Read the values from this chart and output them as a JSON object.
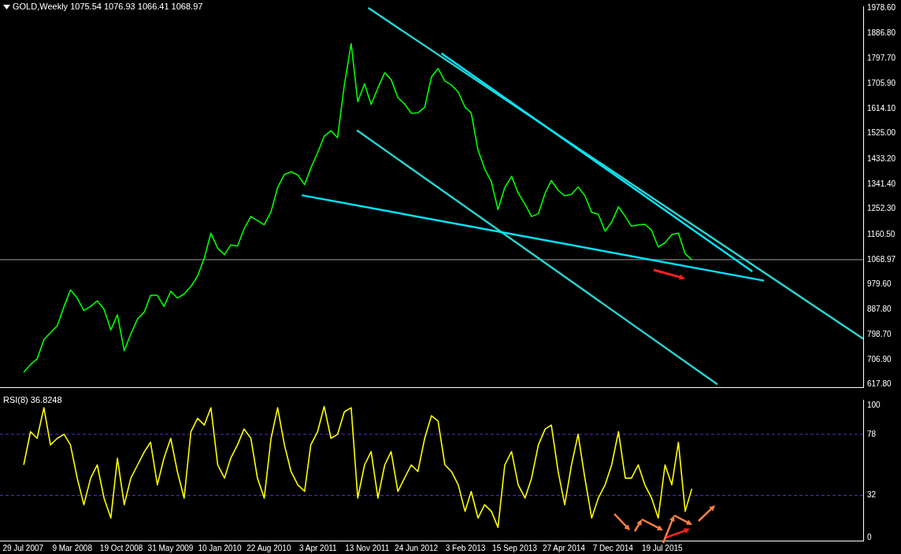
{
  "chart_data": [
    {
      "type": "line",
      "title": "GOLD,Weekly 1075.54 1076.93 1066.41 1068.97",
      "x": [
        "2007-08",
        "2007-09",
        "2007-10",
        "2007-11",
        "2007-12",
        "2008-01",
        "2008-02",
        "2008-03",
        "2008-04",
        "2008-05",
        "2008-06",
        "2008-07",
        "2008-08",
        "2008-09",
        "2008-10",
        "2008-11",
        "2008-12",
        "2009-01",
        "2009-02",
        "2009-03",
        "2009-04",
        "2009-05",
        "2009-06",
        "2009-07",
        "2009-08",
        "2009-09",
        "2009-10",
        "2009-11",
        "2009-12",
        "2010-01",
        "2010-02",
        "2010-03",
        "2010-04",
        "2010-05",
        "2010-06",
        "2010-07",
        "2010-08",
        "2010-09",
        "2010-10",
        "2010-11",
        "2010-12",
        "2011-01",
        "2011-02",
        "2011-03",
        "2011-04",
        "2011-05",
        "2011-06",
        "2011-07",
        "2011-08",
        "2011-09",
        "2011-10",
        "2011-11",
        "2011-12",
        "2012-01",
        "2012-02",
        "2012-03",
        "2012-04",
        "2012-05",
        "2012-06",
        "2012-07",
        "2012-08",
        "2012-09",
        "2012-10",
        "2012-11",
        "2012-12",
        "2013-01",
        "2013-02",
        "2013-03",
        "2013-04",
        "2013-05",
        "2013-06",
        "2013-07",
        "2013-08",
        "2013-09",
        "2013-10",
        "2013-11",
        "2013-12",
        "2014-01",
        "2014-02",
        "2014-03",
        "2014-04",
        "2014-05",
        "2014-06",
        "2014-07",
        "2014-08",
        "2014-09",
        "2014-10",
        "2014-11",
        "2014-12",
        "2015-01",
        "2015-02",
        "2015-03",
        "2015-04",
        "2015-05",
        "2015-06",
        "2015-07",
        "2015-08",
        "2015-09",
        "2015-10",
        "2015-11",
        "2015-12"
      ],
      "series": [
        {
          "color": "#00ff00",
          "values": [
            662,
            690,
            710,
            780,
            805,
            830,
            900,
            960,
            930,
            885,
            900,
            920,
            890,
            815,
            870,
            740,
            800,
            855,
            880,
            940,
            940,
            900,
            955,
            930,
            945,
            972,
            1010,
            1075,
            1165,
            1110,
            1087,
            1122,
            1118,
            1180,
            1225,
            1210,
            1195,
            1243,
            1330,
            1377,
            1387,
            1375,
            1340,
            1400,
            1455,
            1515,
            1535,
            1510,
            1700,
            1850,
            1640,
            1705,
            1630,
            1690,
            1745,
            1720,
            1655,
            1632,
            1598,
            1600,
            1620,
            1730,
            1760,
            1715,
            1700,
            1675,
            1620,
            1600,
            1465,
            1398,
            1350,
            1250,
            1330,
            1370,
            1310,
            1270,
            1225,
            1235,
            1310,
            1355,
            1320,
            1300,
            1305,
            1332,
            1300,
            1240,
            1233,
            1172,
            1205,
            1260,
            1225,
            1190,
            1195,
            1197,
            1175,
            1115,
            1130,
            1160,
            1165,
            1090,
            1069
          ]
        },
        {
          "type": "line",
          "color": "#00e5ff",
          "x": [
            "2011-01-19",
            "2016-10-25"
          ],
          "values": [
            1302,
            993
          ]
        },
        {
          "type": "line",
          "color": "#00e5ff",
          "x": [
            "2012-10-16",
            "2016-09-02"
          ],
          "values": [
            1815,
            1026
          ]
        },
        {
          "type": "line",
          "color": "#2ad4d4",
          "x": [
            "2011-11-18",
            "2018-01-20"
          ],
          "values": [
            1979,
            783
          ]
        },
        {
          "type": "line",
          "color": "#2ad4d4",
          "x": [
            "2011-09-27",
            "2016-03-27"
          ],
          "values": [
            1537,
            618
          ]
        }
      ],
      "xlim": [
        "2007-04-15",
        "2018-01-20"
      ],
      "ylim": [
        608,
        1985
      ],
      "yticks": [
        {
          "value": 617.8,
          "label": "617.80"
        },
        {
          "value": 706.9,
          "label": "706.90"
        },
        {
          "value": 798.7,
          "label": "798.70"
        },
        {
          "value": 887.8,
          "label": "887.80"
        },
        {
          "value": 979.6,
          "label": "979.60"
        },
        1068.97,
        {
          "value": 1160.5,
          "label": "1160.50"
        },
        {
          "value": 1252.3,
          "label": "1252.30"
        },
        {
          "value": 1341.4,
          "label": "1341.40"
        },
        {
          "value": 1433.2,
          "label": "1433.20"
        },
        {
          "value": 1525,
          "label": "1525.00"
        },
        {
          "value": 1614.1,
          "label": "1614.10"
        },
        {
          "value": 1705.9,
          "label": "1705.90"
        },
        {
          "value": 1797.7,
          "label": "1797.70"
        },
        {
          "value": 1886.8,
          "label": "1886.80"
        },
        {
          "value": 1978.6,
          "label": "1978.60"
        }
      ],
      "tick_labels": "y",
      "grid": false,
      "ref_lines": [
        {
          "axis": "y",
          "value": 1068.97,
          "color": "#a0a0a0"
        }
      ]
    },
    {
      "type": "line",
      "title": "RSI(8) 36.8248",
      "x": [
        "2007-08",
        "2007-09",
        "2007-10",
        "2007-11",
        "2007-12",
        "2008-01",
        "2008-02",
        "2008-03",
        "2008-04",
        "2008-05",
        "2008-06",
        "2008-07",
        "2008-08",
        "2008-09",
        "2008-10",
        "2008-11",
        "2008-12",
        "2009-01",
        "2009-02",
        "2009-03",
        "2009-04",
        "2009-05",
        "2009-06",
        "2009-07",
        "2009-08",
        "2009-09",
        "2009-10",
        "2009-11",
        "2009-12",
        "2010-01",
        "2010-02",
        "2010-03",
        "2010-04",
        "2010-05",
        "2010-06",
        "2010-07",
        "2010-08",
        "2010-09",
        "2010-10",
        "2010-11",
        "2010-12",
        "2011-01",
        "2011-02",
        "2011-03",
        "2011-04",
        "2011-05",
        "2011-06",
        "2011-07",
        "2011-08",
        "2011-09",
        "2011-10",
        "2011-11",
        "2011-12",
        "2012-01",
        "2012-02",
        "2012-03",
        "2012-04",
        "2012-05",
        "2012-06",
        "2012-07",
        "2012-08",
        "2012-09",
        "2012-10",
        "2012-11",
        "2012-12",
        "2013-01",
        "2013-02",
        "2013-03",
        "2013-04",
        "2013-05",
        "2013-06",
        "2013-07",
        "2013-08",
        "2013-09",
        "2013-10",
        "2013-11",
        "2013-12",
        "2014-01",
        "2014-02",
        "2014-03",
        "2014-04",
        "2014-05",
        "2014-06",
        "2014-07",
        "2014-08",
        "2014-09",
        "2014-10",
        "2014-11",
        "2014-12",
        "2015-01",
        "2015-02",
        "2015-03",
        "2015-04",
        "2015-05",
        "2015-06",
        "2015-07",
        "2015-08",
        "2015-09",
        "2015-10",
        "2015-11",
        "2015-12"
      ],
      "series": [
        {
          "color": "#ffff00",
          "values": [
            55,
            80,
            75,
            98,
            70,
            75,
            78,
            70,
            45,
            25,
            45,
            55,
            30,
            15,
            60,
            25,
            45,
            55,
            65,
            72,
            40,
            60,
            75,
            50,
            30,
            80,
            90,
            85,
            98,
            55,
            45,
            60,
            70,
            82,
            75,
            45,
            30,
            75,
            98,
            70,
            50,
            40,
            35,
            70,
            80,
            99,
            75,
            78,
            95,
            98,
            30,
            55,
            65,
            30,
            55,
            65,
            35,
            45,
            55,
            50,
            75,
            92,
            88,
            55,
            50,
            40,
            20,
            35,
            15,
            25,
            20,
            8,
            55,
            65,
            40,
            30,
            45,
            70,
            82,
            85,
            50,
            25,
            55,
            78,
            45,
            15,
            30,
            40,
            55,
            80,
            45,
            45,
            55,
            40,
            30,
            15,
            55,
            40,
            72,
            20,
            37
          ]
        }
      ],
      "xlim": [
        "2007-04-15",
        "2018-01-20"
      ],
      "xticks": [
        {
          "value": "2007-07-29",
          "label": "29 Jul 2007"
        },
        {
          "value": "2008-03-09",
          "label": "9 Mar 2008"
        },
        {
          "value": "2008-10-19",
          "label": "19 Oct 2008"
        },
        {
          "value": "2009-05-31",
          "label": "31 May 2009"
        },
        {
          "value": "2010-01-10",
          "label": "10 Jan 2010"
        },
        {
          "value": "2010-08-22",
          "label": "22 Aug 2010"
        },
        {
          "value": "2011-04-03",
          "label": "3 Apr 2011"
        },
        {
          "value": "2011-11-13",
          "label": "13 Nov 2011"
        },
        {
          "value": "2012-06-24",
          "label": "24 Jun 2012"
        },
        {
          "value": "2013-02-03",
          "label": "3 Feb 2013"
        },
        {
          "value": "2013-09-15",
          "label": "15 Sep 2013"
        },
        {
          "value": "2014-04-27",
          "label": "27 Apr 2014"
        },
        {
          "value": "2014-12-07",
          "label": "7 Dec 2014"
        },
        {
          "value": "2015-07-19",
          "label": "19 Jul 2015"
        }
      ],
      "ylim": [
        -2,
        104
      ],
      "yticks": [
        0,
        32,
        78,
        100
      ],
      "grid": false,
      "ref_lines": [
        {
          "axis": "y",
          "value": 78,
          "color": "#5a32c8",
          "line_style": "dashed"
        },
        {
          "axis": "y",
          "value": 32,
          "color": "#5a32c8",
          "line_style": "dashed"
        }
      ]
    }
  ]
}
